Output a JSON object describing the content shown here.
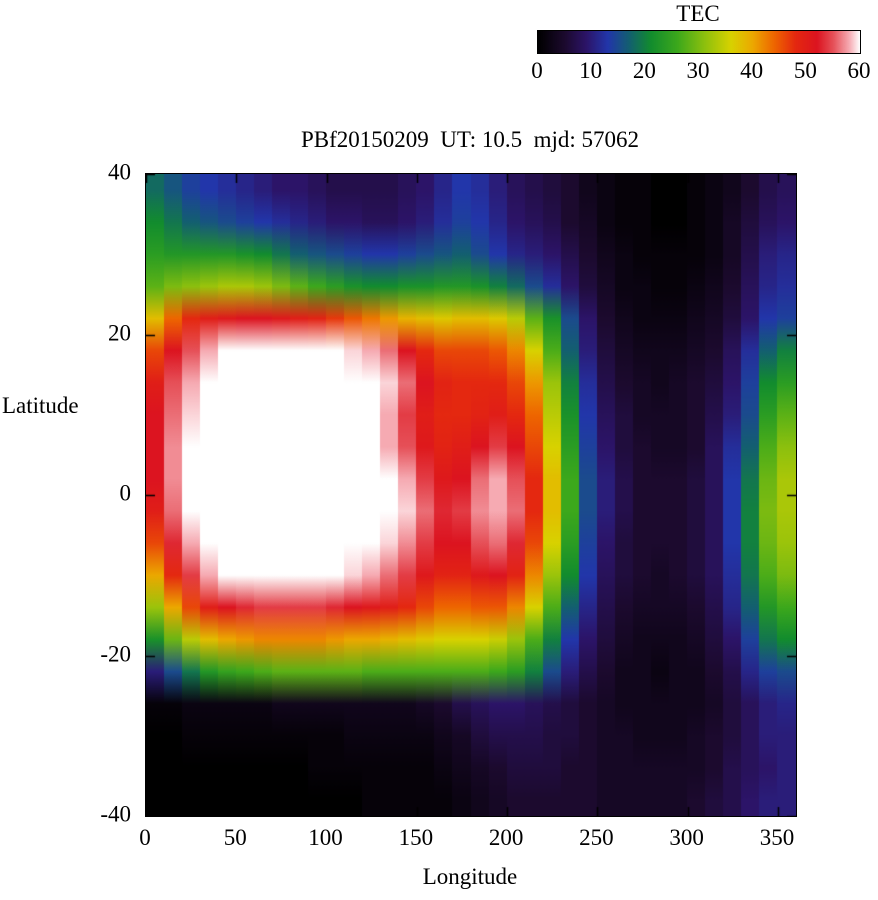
{
  "chart_data": {
    "type": "heatmap",
    "title": "PBf20150209  UT: 10.5  mjd: 57062",
    "xlabel": "Longitude",
    "ylabel": "Latitude",
    "xlim": [
      0,
      360
    ],
    "ylim": [
      -40,
      40
    ],
    "xticks": [
      0,
      50,
      100,
      150,
      200,
      250,
      300,
      350
    ],
    "yticks": [
      40,
      20,
      0,
      -20,
      -40
    ],
    "grid": false,
    "colorbar": {
      "label": "TEC",
      "ticks": [
        0,
        10,
        20,
        30,
        40,
        50,
        60
      ],
      "range": [
        0,
        60
      ],
      "position": "top"
    },
    "palette": [
      {
        "v": 0,
        "c": "#000000"
      },
      {
        "v": 5,
        "c": "#1c0a2e"
      },
      {
        "v": 9,
        "c": "#2c1468"
      },
      {
        "v": 13,
        "c": "#2236aa"
      },
      {
        "v": 17,
        "c": "#135f70"
      },
      {
        "v": 21,
        "c": "#128c2e"
      },
      {
        "v": 26,
        "c": "#3ca81c"
      },
      {
        "v": 31,
        "c": "#8cc00e"
      },
      {
        "v": 36,
        "c": "#d8d200"
      },
      {
        "v": 40,
        "c": "#eca800"
      },
      {
        "v": 44,
        "c": "#ee6600"
      },
      {
        "v": 48,
        "c": "#e42810"
      },
      {
        "v": 52,
        "c": "#dc1420"
      },
      {
        "v": 55,
        "c": "#e65058"
      },
      {
        "v": 58,
        "c": "#f6aab2"
      },
      {
        "v": 60,
        "c": "#ffffff"
      }
    ],
    "lon_centers": [
      5,
      15,
      25,
      35,
      45,
      55,
      65,
      75,
      85,
      95,
      105,
      115,
      125,
      135,
      145,
      155,
      165,
      175,
      185,
      195,
      205,
      215,
      225,
      235,
      245,
      255,
      265,
      275,
      285,
      295,
      305,
      315,
      325,
      335,
      345,
      355
    ],
    "lat_centers": [
      38,
      34,
      30,
      26,
      22,
      18,
      14,
      10,
      6,
      2,
      -2,
      -6,
      -10,
      -14,
      -18,
      -22,
      -26,
      -30,
      -34,
      -38
    ],
    "values_by_lat_row": [
      [
        18,
        16,
        14,
        13,
        12,
        11,
        10,
        9,
        9,
        8,
        7,
        7,
        7,
        7,
        8,
        9,
        11,
        13,
        12,
        10,
        8,
        7,
        6,
        5,
        3,
        2,
        1,
        1,
        0,
        0,
        1,
        2,
        3,
        5,
        7,
        8
      ],
      [
        21,
        19,
        17,
        16,
        15,
        14,
        13,
        12,
        11,
        10,
        9,
        9,
        8,
        8,
        9,
        10,
        12,
        14,
        13,
        11,
        9,
        8,
        7,
        5,
        4,
        2,
        1,
        1,
        0,
        0,
        1,
        2,
        4,
        6,
        8,
        9
      ],
      [
        24,
        23,
        23,
        23,
        23,
        22,
        21,
        19,
        17,
        16,
        15,
        14,
        13,
        13,
        14,
        15,
        16,
        17,
        15,
        13,
        11,
        10,
        9,
        7,
        5,
        3,
        2,
        1,
        1,
        1,
        1,
        2,
        4,
        7,
        10,
        11
      ],
      [
        28,
        30,
        31,
        32,
        33,
        33,
        32,
        30,
        28,
        26,
        24,
        22,
        21,
        21,
        22,
        22,
        23,
        23,
        22,
        20,
        18,
        15,
        12,
        9,
        6,
        4,
        2,
        2,
        1,
        1,
        2,
        3,
        5,
        8,
        11,
        12
      ],
      [
        38,
        44,
        48,
        50,
        51,
        52,
        52,
        51,
        50,
        49,
        47,
        45,
        43,
        41,
        39,
        38,
        37,
        38,
        38,
        37,
        34,
        28,
        22,
        15,
        9,
        5,
        3,
        2,
        2,
        2,
        3,
        4,
        6,
        9,
        13,
        14
      ],
      [
        46,
        52,
        55,
        58,
        60,
        60,
        60,
        60,
        60,
        60,
        60,
        59,
        58,
        56,
        52,
        48,
        46,
        46,
        46,
        45,
        42,
        36,
        27,
        17,
        10,
        6,
        4,
        3,
        3,
        3,
        4,
        5,
        8,
        12,
        17,
        20
      ],
      [
        50,
        55,
        58,
        60,
        61,
        61,
        61,
        61,
        61,
        61,
        61,
        61,
        60,
        59,
        56,
        52,
        49,
        48,
        48,
        48,
        46,
        41,
        32,
        20,
        12,
        7,
        5,
        4,
        3,
        4,
        5,
        6,
        9,
        14,
        21,
        24
      ],
      [
        52,
        56,
        59,
        61,
        62,
        62,
        62,
        62,
        62,
        62,
        62,
        61,
        60,
        58,
        54,
        50,
        48,
        48,
        49,
        50,
        48,
        44,
        34,
        22,
        13,
        8,
        6,
        4,
        4,
        4,
        5,
        7,
        10,
        15,
        24,
        28
      ],
      [
        52,
        57,
        60,
        61,
        62,
        62,
        62,
        62,
        62,
        62,
        62,
        61,
        60,
        58,
        55,
        51,
        49,
        50,
        52,
        54,
        52,
        46,
        36,
        24,
        14,
        9,
        6,
        5,
        4,
        4,
        5,
        8,
        12,
        17,
        27,
        31
      ],
      [
        52,
        57,
        60,
        62,
        62,
        62,
        62,
        62,
        62,
        62,
        62,
        62,
        61,
        60,
        58,
        54,
        51,
        52,
        56,
        58,
        55,
        48,
        38,
        26,
        15,
        10,
        7,
        5,
        5,
        5,
        6,
        8,
        13,
        19,
        29,
        33
      ],
      [
        50,
        56,
        60,
        62,
        62,
        62,
        62,
        62,
        62,
        62,
        62,
        62,
        61,
        60,
        59,
        56,
        53,
        54,
        57,
        58,
        56,
        48,
        38,
        26,
        15,
        10,
        7,
        5,
        5,
        5,
        6,
        8,
        13,
        20,
        30,
        33
      ],
      [
        46,
        53,
        58,
        61,
        62,
        62,
        62,
        62,
        62,
        62,
        62,
        61,
        60,
        59,
        57,
        54,
        52,
        52,
        55,
        56,
        53,
        46,
        36,
        24,
        14,
        9,
        6,
        5,
        5,
        5,
        6,
        8,
        13,
        20,
        29,
        32
      ],
      [
        40,
        48,
        54,
        58,
        60,
        61,
        61,
        61,
        61,
        61,
        60,
        59,
        58,
        56,
        54,
        51,
        49,
        49,
        51,
        52,
        49,
        42,
        32,
        21,
        13,
        8,
        6,
        5,
        4,
        5,
        6,
        8,
        12,
        19,
        27,
        30
      ],
      [
        32,
        40,
        46,
        50,
        52,
        53,
        54,
        54,
        54,
        54,
        53,
        52,
        51,
        50,
        48,
        46,
        44,
        44,
        45,
        45,
        42,
        36,
        27,
        17,
        11,
        7,
        5,
        4,
        4,
        4,
        5,
        7,
        11,
        17,
        23,
        26
      ],
      [
        22,
        29,
        34,
        38,
        40,
        41,
        42,
        42,
        42,
        42,
        41,
        40,
        40,
        39,
        38,
        37,
        36,
        36,
        36,
        35,
        32,
        27,
        20,
        13,
        9,
        6,
        4,
        3,
        3,
        3,
        4,
        6,
        9,
        14,
        19,
        21
      ],
      [
        10,
        15,
        19,
        23,
        25,
        26,
        27,
        28,
        28,
        28,
        28,
        28,
        27,
        27,
        27,
        27,
        27,
        27,
        27,
        26,
        24,
        20,
        15,
        10,
        7,
        5,
        3,
        3,
        2,
        3,
        3,
        5,
        7,
        11,
        14,
        15
      ],
      [
        1,
        1,
        2,
        2,
        2,
        2,
        2,
        3,
        3,
        3,
        3,
        3,
        3,
        3,
        3,
        4,
        5,
        7,
        8,
        9,
        9,
        8,
        7,
        6,
        5,
        4,
        3,
        3,
        3,
        3,
        3,
        4,
        6,
        8,
        10,
        11
      ],
      [
        0,
        0,
        1,
        1,
        1,
        1,
        1,
        1,
        1,
        1,
        1,
        2,
        2,
        2,
        2,
        2,
        3,
        4,
        6,
        7,
        7,
        7,
        6,
        6,
        5,
        4,
        4,
        3,
        3,
        3,
        4,
        5,
        6,
        8,
        10,
        10
      ],
      [
        0,
        0,
        0,
        0,
        0,
        0,
        0,
        0,
        0,
        1,
        1,
        1,
        1,
        1,
        1,
        1,
        2,
        3,
        4,
        5,
        6,
        6,
        6,
        5,
        5,
        4,
        4,
        4,
        4,
        4,
        4,
        5,
        7,
        8,
        9,
        10
      ],
      [
        0,
        0,
        0,
        0,
        0,
        0,
        0,
        0,
        0,
        0,
        0,
        0,
        1,
        1,
        1,
        1,
        1,
        2,
        3,
        4,
        5,
        5,
        5,
        5,
        5,
        4,
        4,
        4,
        4,
        4,
        5,
        6,
        7,
        9,
        10,
        10
      ]
    ]
  }
}
